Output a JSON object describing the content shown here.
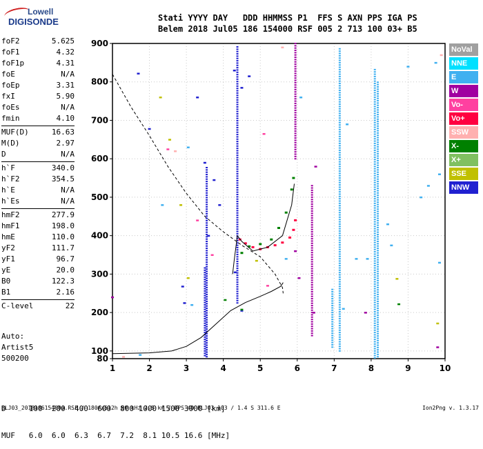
{
  "logo": {
    "brand": "Lowell",
    "name": "DIGISONDE"
  },
  "header": {
    "line1": "Stati YYYY DAY   DDD HHMMSS P1  FFS S AXN PPS IGA PS",
    "line2": "Belem 2018 Jul05 186 154000 RSF 005 2 713 100 03+ B5"
  },
  "params": [
    [
      [
        "foF2",
        "5.625"
      ],
      [
        "foF1",
        "4.32"
      ],
      [
        "foF1p",
        "4.31"
      ],
      [
        "foE",
        "N/A"
      ],
      [
        "foEp",
        "3.31"
      ],
      [
        "fxI",
        "5.90"
      ],
      [
        "foEs",
        "N/A"
      ],
      [
        "fmin",
        "4.10"
      ]
    ],
    [
      [
        "MUF(D)",
        "16.63"
      ],
      [
        "M(D)",
        "2.97"
      ],
      [
        "D",
        "N/A"
      ]
    ],
    [
      [
        "h`F",
        "340.0"
      ],
      [
        "h`F2",
        "354.5"
      ],
      [
        "h`E",
        "N/A"
      ],
      [
        "h`Es",
        "N/A"
      ]
    ],
    [
      [
        "hmF2",
        "277.9"
      ],
      [
        "hmF1",
        "198.0"
      ],
      [
        "hmE",
        "110.0"
      ],
      [
        "yF2",
        "111.7"
      ],
      [
        "yF1",
        "96.7"
      ],
      [
        "yE",
        "20.0"
      ],
      [
        "B0",
        "122.3"
      ],
      [
        "B1",
        "2.16"
      ]
    ],
    [
      [
        "C-level",
        "22"
      ]
    ]
  ],
  "auto": [
    "Auto:",
    "Artist5",
    "500200"
  ],
  "legend": [
    {
      "label": "NoVal",
      "color": "#a0a0a0"
    },
    {
      "label": "NNE",
      "color": "#00e0ff"
    },
    {
      "label": "E",
      "color": "#40b0f0"
    },
    {
      "label": "W",
      "color": "#a000a0"
    },
    {
      "label": "Vo-",
      "color": "#ff40a0"
    },
    {
      "label": "Vo+",
      "color": "#ff0040"
    },
    {
      "label": "SSW",
      "color": "#ffb0b0"
    },
    {
      "label": "X-",
      "color": "#008000"
    },
    {
      "label": "X+",
      "color": "#80c060"
    },
    {
      "label": "SSE",
      "color": "#c0c000"
    },
    {
      "label": "NNW",
      "color": "#2020d0"
    }
  ],
  "scale": {
    "line1": "D     100  200  400  600  800 1000 1500 3000 [km]",
    "line2": "MUF   6.0  6.0  6.3  6.7  7.2  8.1 10.5 16.6 [MHz]"
  },
  "footer": "BLJ03_2018186154000.RSF / 180fx512h 50 kHz 2.5 km / DPS-4D BLJ03 103 / 1.4 S 311.6 E",
  "version": "Ion2Png v. 1.3.17",
  "chart_data": {
    "type": "scatter",
    "xlim": [
      1,
      10
    ],
    "ylim": [
      80,
      900
    ],
    "x_ticks": [
      1,
      2,
      3,
      4,
      5,
      6,
      7,
      8,
      9,
      10
    ],
    "y_ticks": [
      80,
      100,
      200,
      300,
      400,
      500,
      600,
      700,
      800,
      900
    ],
    "grid": true,
    "series": [
      {
        "color": "#2020d0",
        "points": [
          [
            1.7,
            822
          ],
          [
            2.0,
            678
          ],
          [
            2.9,
            268
          ],
          [
            2.95,
            225
          ],
          [
            3.3,
            760
          ],
          [
            3.5,
            590
          ],
          [
            3.6,
            400
          ],
          [
            3.75,
            545
          ],
          [
            3.9,
            480
          ],
          [
            4.3,
            830
          ],
          [
            4.32,
            305
          ],
          [
            4.5,
            205
          ],
          [
            4.5,
            785
          ],
          [
            4.7,
            815
          ]
        ]
      },
      {
        "color": "#40b0f0",
        "points": [
          [
            1.75,
            90
          ],
          [
            2.35,
            480
          ],
          [
            3.05,
            630
          ],
          [
            3.15,
            220
          ],
          [
            5.7,
            340
          ],
          [
            6.1,
            760
          ],
          [
            7.25,
            210
          ],
          [
            7.35,
            690
          ],
          [
            7.6,
            340
          ],
          [
            7.9,
            340
          ],
          [
            8.45,
            430
          ],
          [
            8.55,
            375
          ],
          [
            9.0,
            840
          ],
          [
            9.35,
            500
          ],
          [
            9.55,
            530
          ],
          [
            9.75,
            850
          ],
          [
            9.85,
            560
          ],
          [
            9.85,
            330
          ]
        ]
      },
      {
        "color": "#a000a0",
        "points": [
          [
            5.95,
            360
          ],
          [
            6.05,
            290
          ],
          [
            6.45,
            200
          ],
          [
            6.5,
            580
          ],
          [
            7.85,
            200
          ],
          [
            9.8,
            110
          ],
          [
            1.0,
            240
          ]
        ]
      },
      {
        "color": "#c0c000",
        "points": [
          [
            2.3,
            760
          ],
          [
            2.55,
            650
          ],
          [
            3.05,
            290
          ],
          [
            4.9,
            335
          ],
          [
            8.7,
            288
          ],
          [
            9.8,
            172
          ],
          [
            2.85,
            480
          ]
        ]
      },
      {
        "color": "#008000",
        "points": [
          [
            4.05,
            233
          ],
          [
            4.5,
            208
          ],
          [
            8.75,
            222
          ]
        ]
      },
      {
        "color": "#ff40a0",
        "points": [
          [
            2.5,
            625
          ],
          [
            3.3,
            440
          ],
          [
            3.7,
            350
          ],
          [
            5.1,
            665
          ],
          [
            5.2,
            270
          ]
        ]
      },
      {
        "color": "#ffb0b0",
        "points": [
          [
            1.3,
            85
          ],
          [
            2.7,
            620
          ],
          [
            5.6,
            890
          ],
          [
            9.9,
            870
          ]
        ]
      }
    ],
    "columns": [
      {
        "x": 3.55,
        "y0": 85,
        "y1": 580,
        "color": "#2020d0"
      },
      {
        "x": 3.5,
        "y0": 88,
        "y1": 320,
        "color": "#2020d0"
      },
      {
        "x": 4.38,
        "y0": 225,
        "y1": 895,
        "color": "#2020d0"
      },
      {
        "x": 5.95,
        "y0": 600,
        "y1": 900,
        "color": "#a000a0"
      },
      {
        "x": 6.4,
        "y0": 140,
        "y1": 530,
        "color": "#a000a0"
      },
      {
        "x": 7.15,
        "y0": 100,
        "y1": 890,
        "color": "#40b0f0"
      },
      {
        "x": 8.1,
        "y0": 82,
        "y1": 835,
        "color": "#40b0f0"
      },
      {
        "x": 8.18,
        "y0": 85,
        "y1": 800,
        "color": "#40b0f0"
      },
      {
        "x": 6.95,
        "y0": 110,
        "y1": 260,
        "color": "#40b0f0"
      }
    ],
    "traces": [
      {
        "color": "#ff0040",
        "points": [
          [
            4.45,
            390
          ],
          [
            4.6,
            380
          ],
          [
            4.8,
            370
          ],
          [
            5.0,
            365
          ],
          [
            5.2,
            370
          ],
          [
            5.4,
            375
          ],
          [
            5.6,
            382
          ],
          [
            5.8,
            395
          ],
          [
            5.9,
            415
          ],
          [
            5.95,
            440
          ]
        ]
      },
      {
        "color": "#008000",
        "points": [
          [
            4.5,
            355
          ],
          [
            4.7,
            372
          ],
          [
            5.0,
            378
          ],
          [
            5.3,
            390
          ],
          [
            5.5,
            420
          ],
          [
            5.7,
            460
          ],
          [
            5.85,
            520
          ],
          [
            5.9,
            550
          ]
        ]
      }
    ],
    "lines": [
      {
        "style": "dashed",
        "points": [
          [
            1.0,
            820
          ],
          [
            1.5,
            735
          ],
          [
            2.0,
            660
          ],
          [
            2.5,
            580
          ],
          [
            3.0,
            510
          ],
          [
            3.5,
            450
          ],
          [
            4.0,
            410
          ],
          [
            4.5,
            375
          ],
          [
            5.0,
            345
          ],
          [
            5.4,
            300
          ],
          [
            5.6,
            265
          ],
          [
            5.62,
            250
          ]
        ]
      },
      {
        "style": "solid",
        "points": [
          [
            1.0,
            93
          ],
          [
            2.0,
            95
          ],
          [
            2.6,
            100
          ],
          [
            3.0,
            112
          ],
          [
            3.4,
            135
          ],
          [
            3.8,
            170
          ],
          [
            4.2,
            205
          ],
          [
            4.6,
            226
          ],
          [
            5.0,
            242
          ],
          [
            5.3,
            255
          ],
          [
            5.55,
            268
          ],
          [
            5.62,
            278
          ]
        ]
      },
      {
        "style": "solid",
        "points": [
          [
            4.25,
            300
          ],
          [
            4.3,
            340
          ],
          [
            4.38,
            400
          ],
          [
            4.5,
            385
          ],
          [
            4.8,
            360
          ],
          [
            5.2,
            370
          ],
          [
            5.6,
            400
          ],
          [
            5.85,
            480
          ],
          [
            5.92,
            535
          ]
        ]
      }
    ]
  }
}
